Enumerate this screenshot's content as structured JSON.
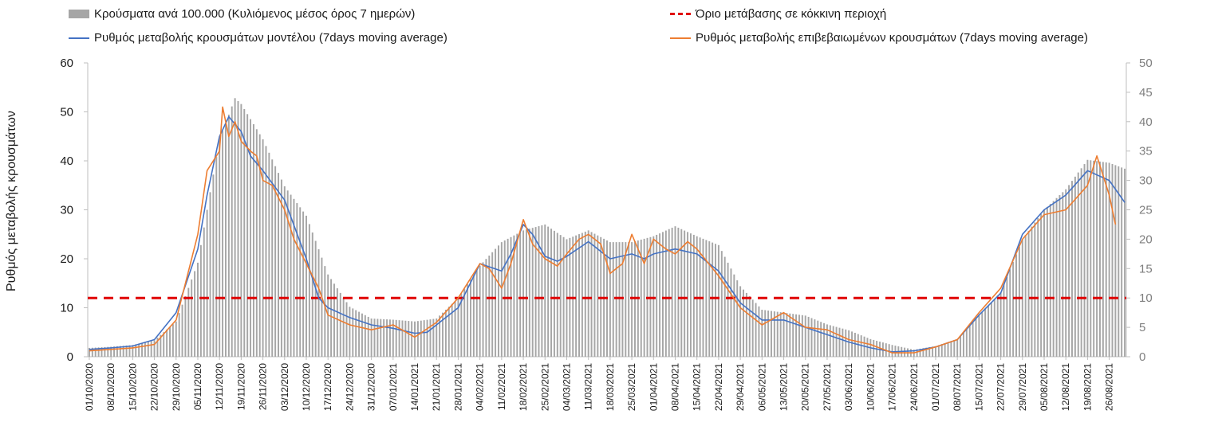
{
  "legend": {
    "bars": "Κρούσματα ανά 100.000 (Κυλιόμενος μέσος όρος 7 ημερών)",
    "threshold": "Όριο μετάβασης σε κόκκινη περιοχή",
    "model": "Ρυθμός μεταβολής κρουσμάτων μοντέλου (7days moving average)",
    "confirmed": "Ρυθμός μεταβολής επιβεβαιωμένων κρουσμάτων (7days moving average)"
  },
  "colors": {
    "bars": "#a6a6a6",
    "threshold": "#e00000",
    "model": "#4472c4",
    "confirmed": "#ed7d31",
    "axis": "#bfbfbf"
  },
  "chart_data": {
    "type": "bar",
    "ylabel": "Ρυθμός μεταβολής κρουσμάτων",
    "ylim_left": [
      0,
      60
    ],
    "ylim_right": [
      0,
      50
    ],
    "yticks_left": [
      "0",
      "10",
      "20",
      "30",
      "40",
      "50",
      "60"
    ],
    "yticks_right": [
      "0",
      "5",
      "10",
      "15",
      "20",
      "25",
      "30",
      "35",
      "40",
      "45",
      "50"
    ],
    "x_start": "01/10/2020",
    "x_end": "31/08/2021",
    "x_tick_labels": [
      "01/10/2020",
      "08/10/2020",
      "15/10/2020",
      "22/10/2020",
      "29/10/2020",
      "05/11/2020",
      "12/11/2020",
      "19/11/2020",
      "26/11/2020",
      "03/12/2020",
      "10/12/2020",
      "17/12/2020",
      "24/12/2020",
      "31/12/2020",
      "07/01/2021",
      "14/01/2021",
      "21/01/2021",
      "28/01/2021",
      "04/02/2021",
      "11/02/2021",
      "18/02/2021",
      "25/02/2021",
      "04/03/2021",
      "11/03/2021",
      "18/03/2021",
      "25/03/2021",
      "01/04/2021",
      "08/04/2021",
      "15/04/2021",
      "22/04/2021",
      "29/04/2021",
      "06/05/2021",
      "13/05/2021",
      "20/05/2021",
      "27/05/2021",
      "03/06/2021",
      "10/06/2021",
      "17/06/2021",
      "24/06/2021",
      "01/07/2021",
      "08/07/2021",
      "15/07/2021",
      "22/07/2021",
      "29/07/2021",
      "05/08/2021",
      "12/08/2021",
      "19/08/2021",
      "26/08/2021"
    ],
    "threshold_right_axis": 10,
    "series": [
      {
        "name": "Κρούσματα ανά 100.000 (Κυλιόμενος μέσος όρος 7 ημερών)",
        "kind": "bar",
        "axis": "right",
        "points": [
          [
            "01/10/2020",
            1.5
          ],
          [
            "08/10/2020",
            1.7
          ],
          [
            "15/10/2020",
            2.0
          ],
          [
            "22/10/2020",
            2.8
          ],
          [
            "29/10/2020",
            6
          ],
          [
            "05/11/2020",
            16
          ],
          [
            "12/11/2020",
            37
          ],
          [
            "17/11/2020",
            44
          ],
          [
            "19/11/2020",
            43
          ],
          [
            "26/11/2020",
            37
          ],
          [
            "03/12/2020",
            29
          ],
          [
            "10/12/2020",
            24
          ],
          [
            "17/12/2020",
            14
          ],
          [
            "24/12/2020",
            8.5
          ],
          [
            "31/12/2020",
            6.5
          ],
          [
            "07/01/2021",
            6.3
          ],
          [
            "14/01/2021",
            6.0
          ],
          [
            "21/01/2021",
            6.5
          ],
          [
            "28/01/2021",
            10
          ],
          [
            "04/02/2021",
            15.5
          ],
          [
            "11/02/2021",
            19.5
          ],
          [
            "18/02/2021",
            21.5
          ],
          [
            "25/02/2021",
            22.5
          ],
          [
            "04/03/2021",
            20
          ],
          [
            "11/03/2021",
            21.5
          ],
          [
            "18/03/2021",
            19.5
          ],
          [
            "25/03/2021",
            19.5
          ],
          [
            "01/04/2021",
            20.5
          ],
          [
            "08/04/2021",
            22.2
          ],
          [
            "15/04/2021",
            20.5
          ],
          [
            "22/04/2021",
            19
          ],
          [
            "29/04/2021",
            12
          ],
          [
            "06/05/2021",
            8
          ],
          [
            "13/05/2021",
            7.5
          ],
          [
            "20/05/2021",
            7
          ],
          [
            "27/05/2021",
            5.5
          ],
          [
            "03/06/2021",
            4.5
          ],
          [
            "10/06/2021",
            3
          ],
          [
            "17/06/2021",
            2
          ],
          [
            "24/06/2021",
            1.2
          ],
          [
            "01/07/2021",
            1.8
          ],
          [
            "08/07/2021",
            3
          ],
          [
            "15/07/2021",
            7
          ],
          [
            "22/07/2021",
            11
          ],
          [
            "29/07/2021",
            20
          ],
          [
            "05/08/2021",
            25
          ],
          [
            "12/08/2021",
            28.5
          ],
          [
            "19/08/2021",
            33.5
          ],
          [
            "26/08/2021",
            33
          ],
          [
            "31/08/2021",
            32
          ]
        ]
      },
      {
        "name": "Ρυθμός μεταβολής κρουσμάτων μοντέλου (7days moving average)",
        "kind": "line",
        "axis": "left",
        "points": [
          [
            "01/10/2020",
            1.5
          ],
          [
            "08/10/2020",
            1.8
          ],
          [
            "15/10/2020",
            2.2
          ],
          [
            "22/10/2020",
            3.5
          ],
          [
            "29/10/2020",
            9
          ],
          [
            "05/11/2020",
            22
          ],
          [
            "08/11/2020",
            33
          ],
          [
            "12/11/2020",
            45
          ],
          [
            "15/11/2020",
            49
          ],
          [
            "19/11/2020",
            46
          ],
          [
            "22/11/2020",
            41
          ],
          [
            "26/11/2020",
            38
          ],
          [
            "03/12/2020",
            32
          ],
          [
            "10/12/2020",
            20
          ],
          [
            "14/12/2020",
            12
          ],
          [
            "17/12/2020",
            10
          ],
          [
            "24/12/2020",
            8
          ],
          [
            "31/12/2020",
            6.5
          ],
          [
            "07/01/2021",
            5.8
          ],
          [
            "14/01/2021",
            4.8
          ],
          [
            "18/01/2021",
            5.0
          ],
          [
            "21/01/2021",
            6.5
          ],
          [
            "28/01/2021",
            10
          ],
          [
            "04/02/2021",
            19
          ],
          [
            "11/02/2021",
            17.5
          ],
          [
            "14/02/2021",
            21
          ],
          [
            "18/02/2021",
            27
          ],
          [
            "21/02/2021",
            25
          ],
          [
            "25/02/2021",
            20.5
          ],
          [
            "01/03/2021",
            19.5
          ],
          [
            "04/03/2021",
            20.5
          ],
          [
            "11/03/2021",
            23.5
          ],
          [
            "18/03/2021",
            20
          ],
          [
            "25/03/2021",
            21
          ],
          [
            "29/03/2021",
            20
          ],
          [
            "01/04/2021",
            21
          ],
          [
            "08/04/2021",
            22
          ],
          [
            "15/04/2021",
            21
          ],
          [
            "22/04/2021",
            17.5
          ],
          [
            "29/04/2021",
            11
          ],
          [
            "06/05/2021",
            7.5
          ],
          [
            "13/05/2021",
            7.5
          ],
          [
            "20/05/2021",
            6
          ],
          [
            "27/05/2021",
            4.5
          ],
          [
            "03/06/2021",
            3
          ],
          [
            "10/06/2021",
            1.8
          ],
          [
            "17/06/2021",
            1.0
          ],
          [
            "24/06/2021",
            1.2
          ],
          [
            "01/07/2021",
            2
          ],
          [
            "08/07/2021",
            3.5
          ],
          [
            "15/07/2021",
            8.5
          ],
          [
            "22/07/2021",
            13
          ],
          [
            "29/07/2021",
            25
          ],
          [
            "05/08/2021",
            30
          ],
          [
            "12/08/2021",
            33
          ],
          [
            "19/08/2021",
            38
          ],
          [
            "26/08/2021",
            36
          ],
          [
            "31/08/2021",
            31.5
          ]
        ]
      },
      {
        "name": "Ρυθμός μεταβολής επιβεβαιωμένων κρουσμάτων (7days moving average)",
        "kind": "line",
        "axis": "left",
        "points": [
          [
            "01/10/2020",
            1.2
          ],
          [
            "08/10/2020",
            1.5
          ],
          [
            "15/10/2020",
            1.8
          ],
          [
            "22/10/2020",
            2.5
          ],
          [
            "29/10/2020",
            7.5
          ],
          [
            "05/11/2020",
            25
          ],
          [
            "08/11/2020",
            38
          ],
          [
            "12/11/2020",
            42
          ],
          [
            "13/11/2020",
            51
          ],
          [
            "15/11/2020",
            45
          ],
          [
            "17/11/2020",
            48
          ],
          [
            "19/11/2020",
            44
          ],
          [
            "22/11/2020",
            42
          ],
          [
            "24/11/2020",
            41
          ],
          [
            "26/11/2020",
            36
          ],
          [
            "29/11/2020",
            35
          ],
          [
            "03/12/2020",
            30
          ],
          [
            "06/12/2020",
            24
          ],
          [
            "10/12/2020",
            19
          ],
          [
            "14/12/2020",
            14
          ],
          [
            "17/12/2020",
            8.5
          ],
          [
            "24/12/2020",
            6.5
          ],
          [
            "31/12/2020",
            5.5
          ],
          [
            "07/01/2021",
            6.5
          ],
          [
            "14/01/2021",
            4
          ],
          [
            "21/01/2021",
            7
          ],
          [
            "28/01/2021",
            12
          ],
          [
            "04/02/2021",
            19
          ],
          [
            "07/02/2021",
            18
          ],
          [
            "11/02/2021",
            14
          ],
          [
            "14/02/2021",
            19
          ],
          [
            "18/02/2021",
            28
          ],
          [
            "21/02/2021",
            23
          ],
          [
            "25/02/2021",
            20
          ],
          [
            "01/03/2021",
            18.5
          ],
          [
            "04/03/2021",
            21
          ],
          [
            "08/03/2021",
            24
          ],
          [
            "11/03/2021",
            25
          ],
          [
            "15/03/2021",
            23
          ],
          [
            "18/03/2021",
            17
          ],
          [
            "22/03/2021",
            19
          ],
          [
            "25/03/2021",
            25
          ],
          [
            "29/03/2021",
            19
          ],
          [
            "01/04/2021",
            24
          ],
          [
            "05/04/2021",
            22
          ],
          [
            "08/04/2021",
            21
          ],
          [
            "12/04/2021",
            23.5
          ],
          [
            "15/04/2021",
            22
          ],
          [
            "22/04/2021",
            16.5
          ],
          [
            "29/04/2021",
            10
          ],
          [
            "06/05/2021",
            6.5
          ],
          [
            "13/05/2021",
            9
          ],
          [
            "20/05/2021",
            6
          ],
          [
            "27/05/2021",
            5.5
          ],
          [
            "03/06/2021",
            3.5
          ],
          [
            "10/06/2021",
            2.5
          ],
          [
            "17/06/2021",
            0.8
          ],
          [
            "24/06/2021",
            0.8
          ],
          [
            "01/07/2021",
            2
          ],
          [
            "08/07/2021",
            3.5
          ],
          [
            "15/07/2021",
            9
          ],
          [
            "22/07/2021",
            14
          ],
          [
            "29/07/2021",
            24
          ],
          [
            "05/08/2021",
            29
          ],
          [
            "12/08/2021",
            30
          ],
          [
            "19/08/2021",
            35
          ],
          [
            "22/08/2021",
            41
          ],
          [
            "26/08/2021",
            33
          ],
          [
            "28/08/2021",
            27
          ]
        ]
      }
    ]
  }
}
